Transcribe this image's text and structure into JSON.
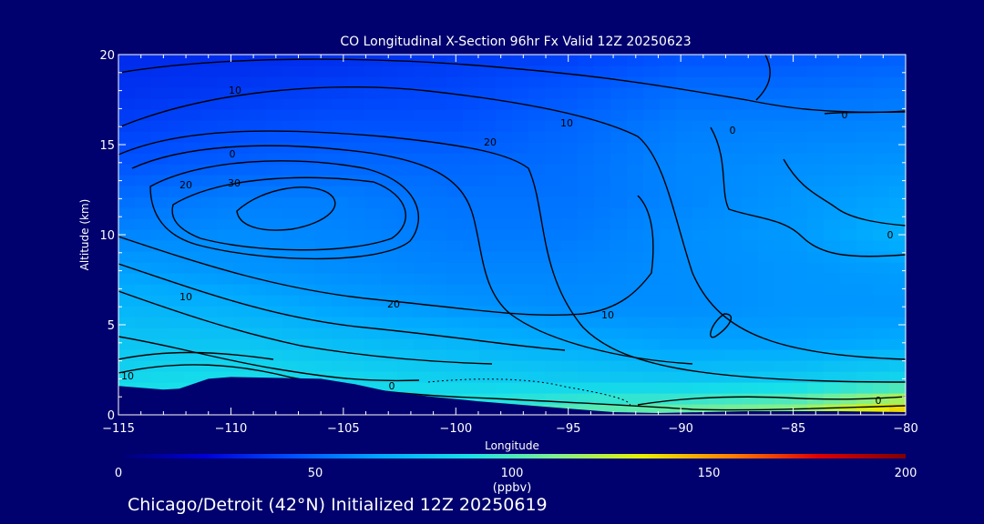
{
  "chart_data": {
    "type": "heatmap",
    "title": "CO Longitudinal X-Section 96hr  Fx Valid 12Z 20250623",
    "xlabel": "Longitude",
    "ylabel": "Altitude (km)",
    "xlim": [
      -115,
      -80
    ],
    "ylim": [
      0,
      20
    ],
    "x_ticks": [
      -115,
      -110,
      -105,
      -100,
      -95,
      -90,
      -85,
      -80
    ],
    "x_tick_labels": [
      "−115",
      "−110",
      "−105",
      "−100",
      "−95",
      "−90",
      "−85",
      "−80"
    ],
    "y_ticks": [
      0,
      5,
      10,
      15,
      20
    ],
    "y_tick_labels": [
      "0",
      "5",
      "10",
      "15",
      "20"
    ],
    "grid": false,
    "colorbar": {
      "min": 0,
      "max": 200,
      "ticks": [
        0,
        50,
        100,
        150,
        200
      ],
      "tick_labels": [
        "0",
        "50",
        "100",
        "150",
        "200"
      ],
      "unit_label": "(ppbv)",
      "stops": [
        "#00006e",
        "#0000d8",
        "#0050ff",
        "#00a8ff",
        "#18e0e8",
        "#80f090",
        "#e8f000",
        "#ff8000",
        "#e00000",
        "#800000"
      ]
    },
    "terrain_km": [
      {
        "lon": -115,
        "alt": 1.6
      },
      {
        "lon": -114,
        "alt": 1.5
      },
      {
        "lon": -113,
        "alt": 1.4
      },
      {
        "lon": -112.3,
        "alt": 1.45
      },
      {
        "lon": -111,
        "alt": 2.0
      },
      {
        "lon": -110,
        "alt": 2.1
      },
      {
        "lon": -108,
        "alt": 2.05
      },
      {
        "lon": -106,
        "alt": 2.0
      },
      {
        "lon": -104.5,
        "alt": 1.7
      },
      {
        "lon": -103,
        "alt": 1.3
      },
      {
        "lon": -101,
        "alt": 1.0
      },
      {
        "lon": -99,
        "alt": 0.75
      },
      {
        "lon": -97,
        "alt": 0.55
      },
      {
        "lon": -95,
        "alt": 0.35
      },
      {
        "lon": -93,
        "alt": 0.15
      },
      {
        "lon": -91,
        "alt": 0.1
      },
      {
        "lon": -89,
        "alt": 0.15
      },
      {
        "lon": -87,
        "alt": 0.2
      },
      {
        "lon": -85,
        "alt": 0.2
      },
      {
        "lon": -83,
        "alt": 0.2
      },
      {
        "lon": -80,
        "alt": 0.15
      }
    ],
    "concentration_ppbv": {
      "lon": [
        -115,
        -110,
        -105,
        -100,
        -95,
        -90,
        -85,
        -80
      ],
      "alt_km": [
        0,
        2,
        4,
        6,
        8,
        10,
        12,
        14,
        16,
        18,
        20
      ],
      "values": [
        [
          95,
          95,
          92,
          95,
          105,
          110,
          118,
          150
        ],
        [
          85,
          88,
          85,
          82,
          80,
          78,
          80,
          85
        ],
        [
          78,
          78,
          75,
          72,
          68,
          65,
          65,
          68
        ],
        [
          72,
          70,
          65,
          62,
          60,
          60,
          62,
          62
        ],
        [
          65,
          62,
          60,
          58,
          58,
          60,
          62,
          64
        ],
        [
          58,
          60,
          58,
          55,
          55,
          60,
          63,
          70
        ],
        [
          52,
          56,
          56,
          53,
          53,
          58,
          62,
          66
        ],
        [
          45,
          48,
          50,
          50,
          52,
          58,
          60,
          62
        ],
        [
          40,
          43,
          45,
          45,
          50,
          56,
          57,
          58
        ],
        [
          36,
          38,
          40,
          42,
          46,
          52,
          52,
          54
        ],
        [
          34,
          34,
          35,
          38,
          40,
          45,
          46,
          48
        ]
      ]
    },
    "contour_labels": [
      "10",
      "20",
      "30",
      "10",
      "20",
      "10",
      "0",
      "20",
      "10",
      "0",
      "0",
      "10",
      "0",
      "0",
      "0"
    ]
  },
  "footer_text": "Chicago/Detroit (42°N) Initialized 12Z 20250619"
}
